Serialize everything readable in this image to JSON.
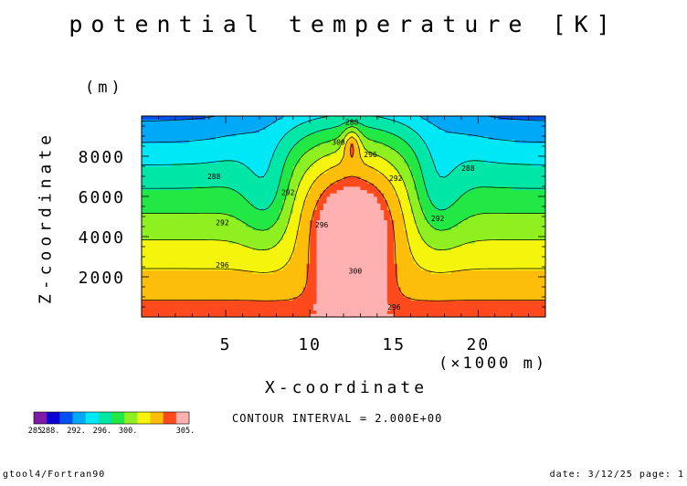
{
  "page": {
    "title": "potential temperature [K]",
    "footer_left": "gtool4/Fortran90",
    "footer_right": "date: 3/12/25 page: 1",
    "contour_interval": "CONTOUR INTERVAL = 2.000E+00"
  },
  "chart_data": {
    "type": "heatmap",
    "title": "potential temperature [K]",
    "xlabel": "X-coordinate",
    "x_unit_label": "(×1000 m)",
    "ylabel": "Z-coordinate",
    "y_unit_label": "(m)",
    "xlim": [
      0,
      24
    ],
    "ylim": [
      0,
      10000
    ],
    "x_ticks": [
      5,
      10,
      15,
      20
    ],
    "x_tick_labels": [
      "5",
      "10",
      "15",
      "20"
    ],
    "y_ticks": [
      2000,
      4000,
      6000,
      8000
    ],
    "y_tick_labels": [
      "2000",
      "4000",
      "6000",
      "8000"
    ],
    "contour_interval": 2.0,
    "contour_labels": [
      {
        "x": 12.5,
        "z": 9700,
        "text": "288"
      },
      {
        "x": 11.7,
        "z": 8700,
        "text": "300"
      },
      {
        "x": 13.6,
        "z": 8100,
        "text": "296"
      },
      {
        "x": 15.1,
        "z": 6900,
        "text": "292"
      },
      {
        "x": 19.4,
        "z": 7400,
        "text": "288"
      },
      {
        "x": 4.3,
        "z": 7000,
        "text": "288"
      },
      {
        "x": 8.7,
        "z": 6200,
        "text": "292"
      },
      {
        "x": 10.7,
        "z": 4600,
        "text": "296"
      },
      {
        "x": 12.7,
        "z": 2300,
        "text": "300"
      },
      {
        "x": 4.8,
        "z": 4700,
        "text": "292"
      },
      {
        "x": 17.6,
        "z": 4900,
        "text": "292"
      },
      {
        "x": 4.8,
        "z": 2600,
        "text": "296"
      },
      {
        "x": 15.0,
        "z": 500,
        "text": "296"
      }
    ],
    "colorbar": {
      "levels": [
        285,
        286,
        288,
        290,
        292,
        294,
        296,
        298,
        300,
        302,
        304,
        305
      ],
      "colors": [
        "#7e19a8",
        "#0a00d2",
        "#0050f0",
        "#00a8f8",
        "#00e8f6",
        "#00e6a6",
        "#22e845",
        "#8ff021",
        "#f4f40c",
        "#fcbe0a",
        "#ff4a1e",
        "#ffb0b0"
      ],
      "labels": [
        "285.",
        "288.",
        "292.",
        "296.",
        "300.",
        "305."
      ]
    }
  }
}
